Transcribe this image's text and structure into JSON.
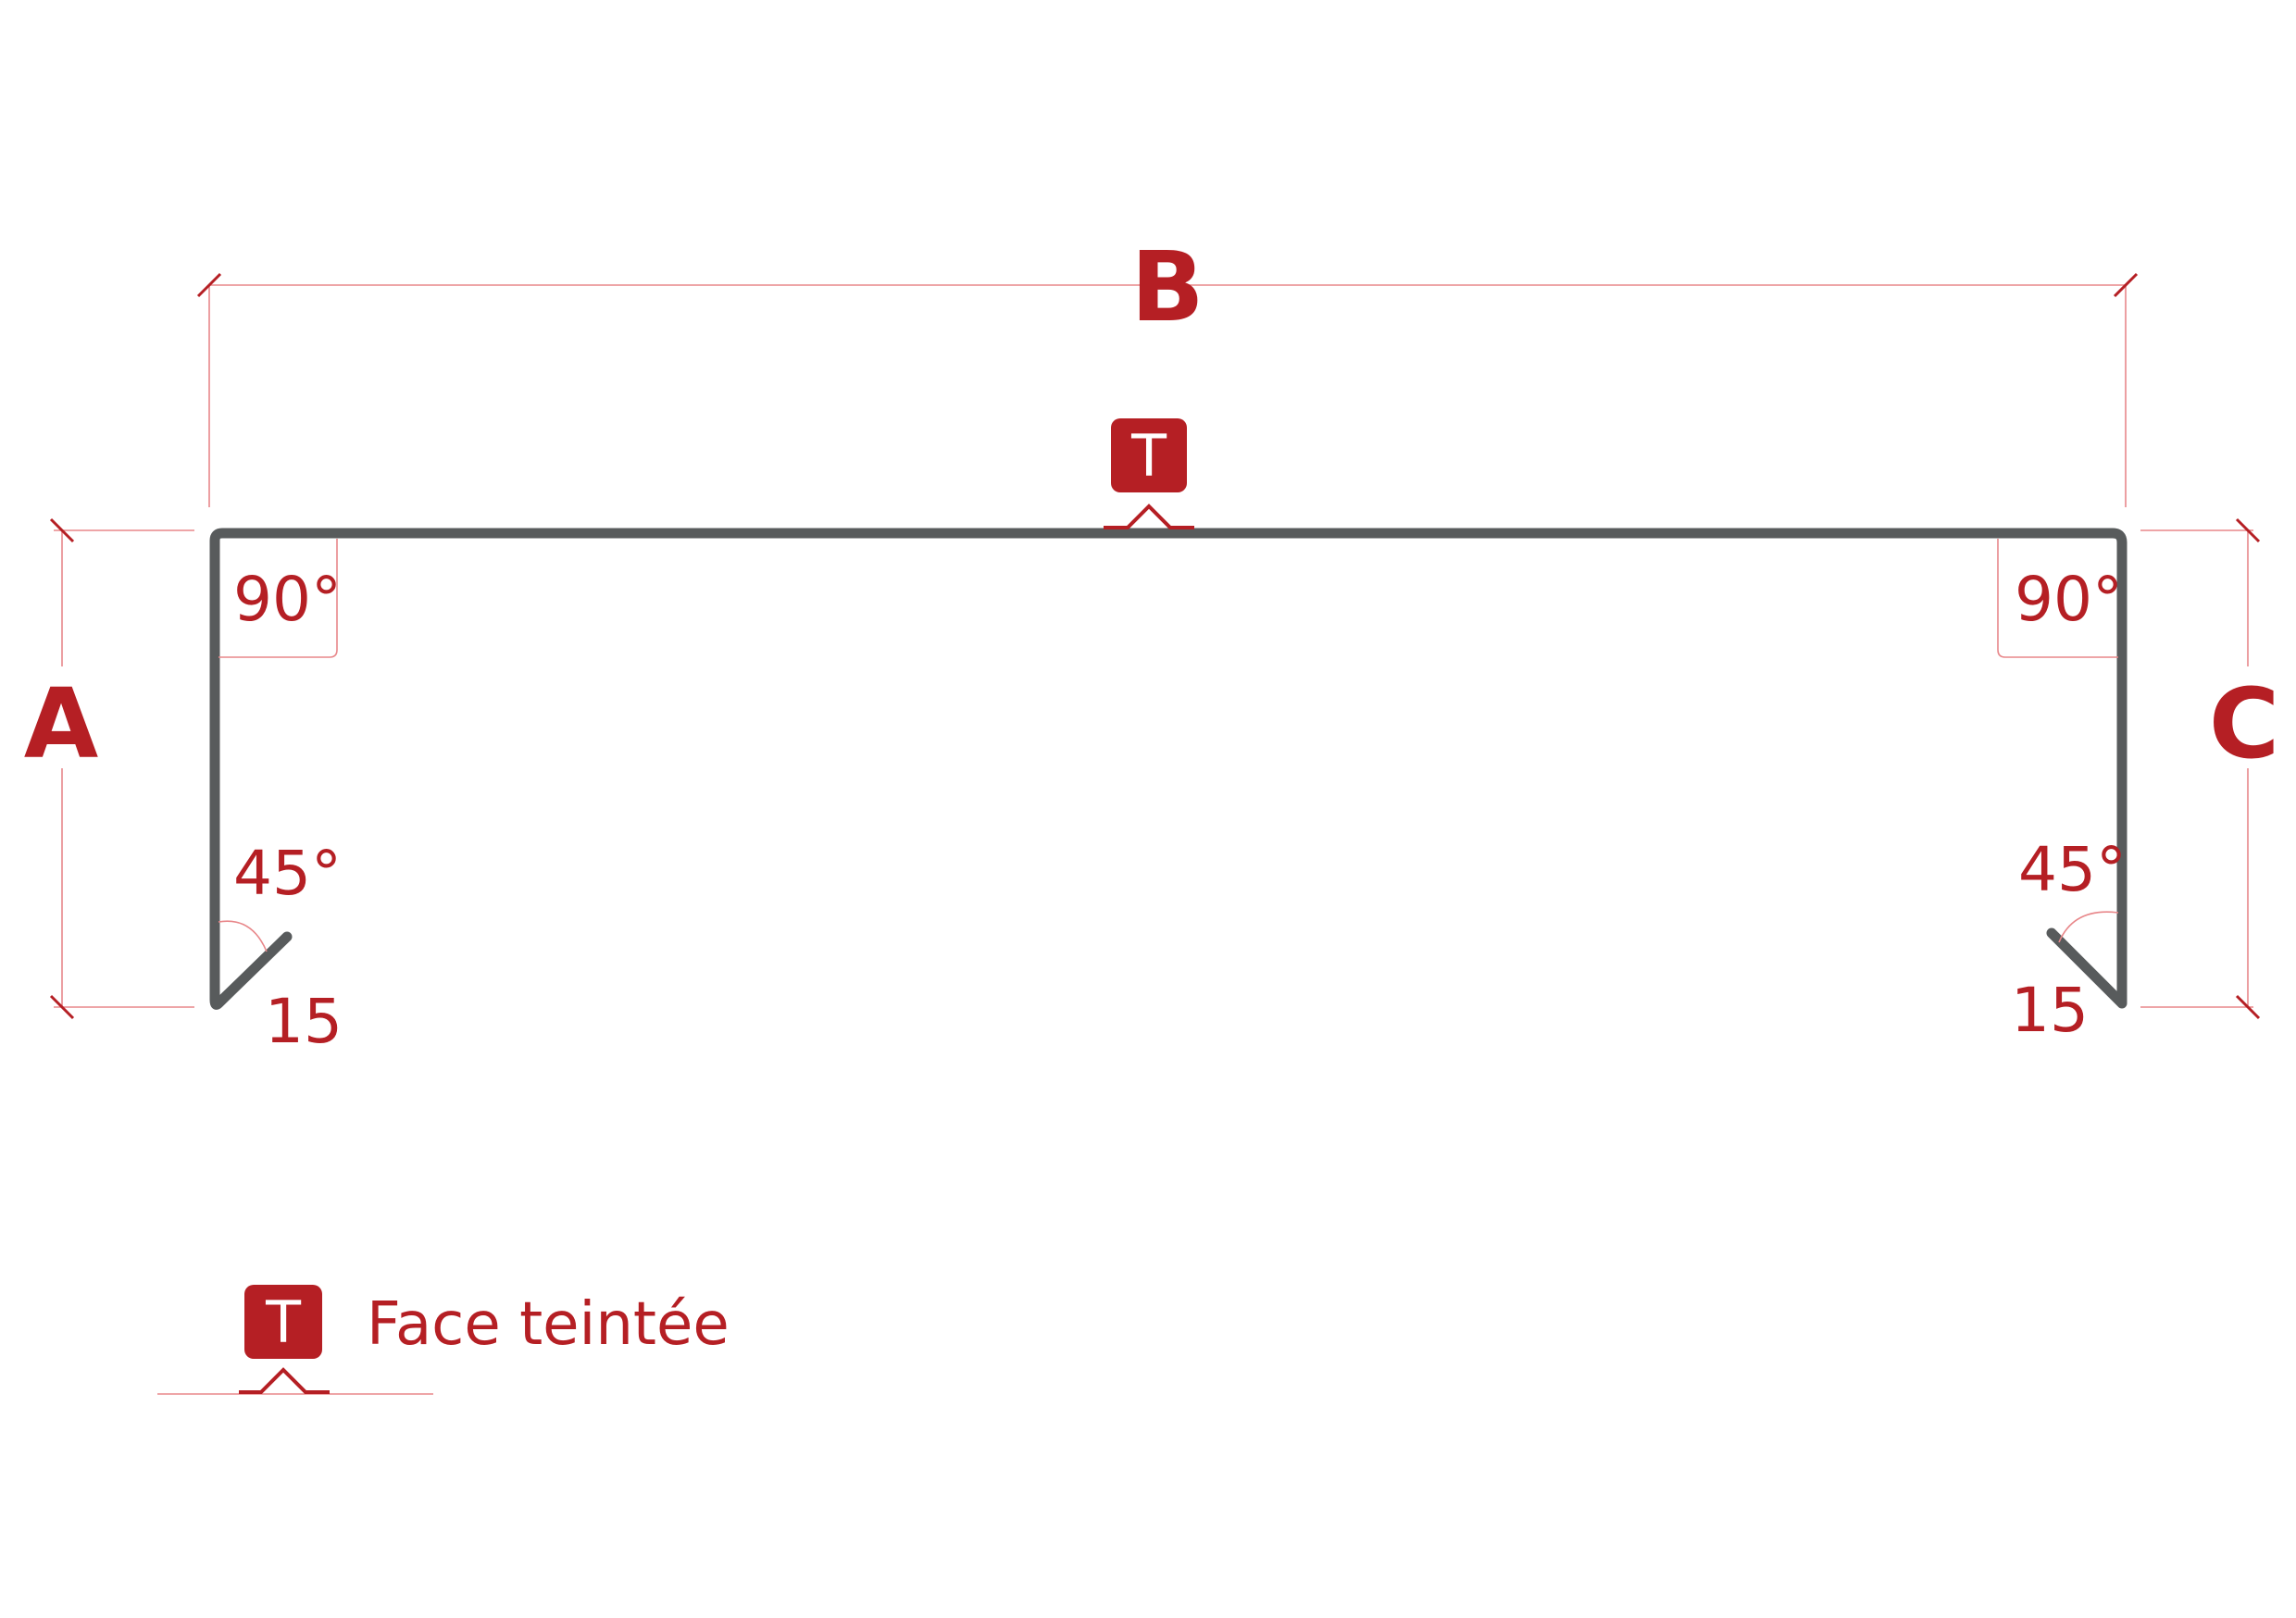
{
  "dimensions": {
    "top": "B",
    "left": "A",
    "right": "C"
  },
  "angles": {
    "left_top": "90°",
    "right_top": "90°",
    "left_bottom": "45°",
    "right_bottom": "45°"
  },
  "hems": {
    "left": "15",
    "right": "15"
  },
  "tinted_face": {
    "badge": "T",
    "legend_label": "Face teintée"
  },
  "colors": {
    "accent": "#b51f24",
    "profile": "#585b5c",
    "dimension_line": "#e8878a"
  }
}
